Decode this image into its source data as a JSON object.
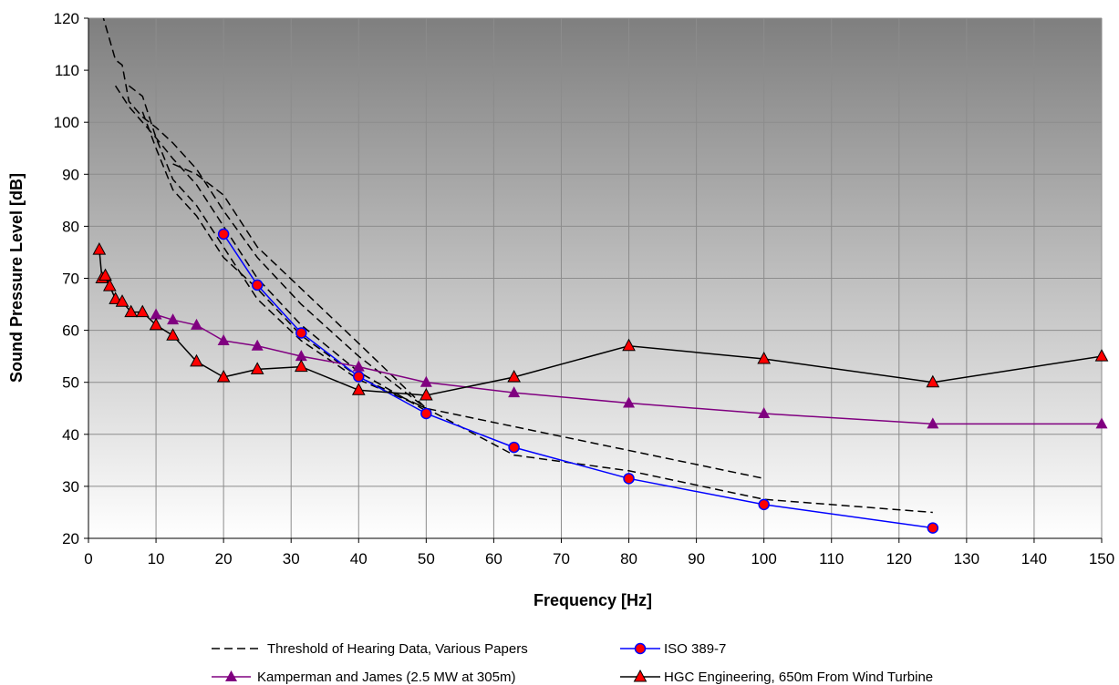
{
  "chart_data": {
    "type": "line",
    "title": "",
    "xlabel": "Frequency [Hz]",
    "ylabel": "Sound Pressure Level [dB]",
    "xlim": [
      0,
      150
    ],
    "ylim": [
      20,
      120
    ],
    "xticks": [
      0,
      10,
      20,
      30,
      40,
      50,
      60,
      70,
      80,
      90,
      100,
      110,
      120,
      130,
      140,
      150
    ],
    "yticks": [
      20,
      30,
      40,
      50,
      60,
      70,
      80,
      90,
      100,
      110,
      120
    ],
    "grid": true,
    "legend_position": "bottom",
    "series": [
      {
        "name": "Threshold of Hearing Data, Various Papers",
        "style": "dashed",
        "color": "#000000",
        "marker": "none",
        "lines": [
          [
            [
              2,
              121
            ],
            [
              4,
              112
            ],
            [
              5,
              111
            ],
            [
              6,
              104
            ],
            [
              8,
              101
            ],
            [
              10,
              99
            ],
            [
              12.5,
              96
            ],
            [
              16,
              91
            ],
            [
              20,
              83
            ],
            [
              25,
              74
            ],
            [
              31.5,
              65
            ],
            [
              40,
              55
            ],
            [
              50,
              45
            ]
          ],
          [
            [
              4,
              107
            ],
            [
              6,
              103
            ],
            [
              8,
              100
            ],
            [
              10,
              97
            ],
            [
              12.5,
              93
            ],
            [
              16,
              88
            ],
            [
              20,
              80
            ],
            [
              25,
              70
            ],
            [
              31.5,
              61
            ],
            [
              40,
              52
            ],
            [
              50,
              44.5
            ]
          ],
          [
            [
              6,
              107
            ],
            [
              8,
              105
            ],
            [
              10,
              97
            ],
            [
              12.5,
              89
            ],
            [
              16,
              84
            ],
            [
              20,
              76
            ],
            [
              25,
              66
            ],
            [
              31.5,
              58
            ],
            [
              40,
              50.5
            ],
            [
              50,
              45
            ]
          ],
          [
            [
              8,
              102
            ],
            [
              10,
              95
            ],
            [
              12.5,
              87
            ],
            [
              16,
              82
            ],
            [
              20,
              74
            ],
            [
              25,
              68
            ],
            [
              31.5,
              59
            ],
            [
              40,
              51
            ],
            [
              50,
              45
            ],
            [
              63,
              36
            ],
            [
              80,
              33
            ],
            [
              100,
              27.5
            ],
            [
              125,
              25
            ]
          ],
          [
            [
              12.5,
              92
            ],
            [
              16,
              90
            ],
            [
              20,
              86
            ],
            [
              25,
              76
            ],
            [
              31.5,
              68
            ],
            [
              40,
              57.5
            ],
            [
              50,
              45
            ],
            [
              100,
              31.5
            ]
          ]
        ]
      },
      {
        "name": "ISO 389-7",
        "style": "solid",
        "color": "#0000ff",
        "marker": "circle",
        "marker_fill": "#ff0000",
        "points": [
          [
            20,
            78.5
          ],
          [
            25,
            68.7
          ],
          [
            31.5,
            59.5
          ],
          [
            40,
            51.1
          ],
          [
            50,
            44
          ],
          [
            63,
            37.5
          ],
          [
            80,
            31.5
          ],
          [
            100,
            26.5
          ],
          [
            125,
            22
          ]
        ]
      },
      {
        "name": "Kamperman and James (2.5 MW at 305m)",
        "style": "solid",
        "color": "#800080",
        "marker": "triangle",
        "marker_fill": "#800080",
        "points": [
          [
            10,
            63
          ],
          [
            12.5,
            62
          ],
          [
            16,
            61
          ],
          [
            20,
            58
          ],
          [
            25,
            57
          ],
          [
            31.5,
            55
          ],
          [
            40,
            53
          ],
          [
            50,
            50
          ],
          [
            63,
            48
          ],
          [
            80,
            46
          ],
          [
            100,
            44
          ],
          [
            125,
            42
          ],
          [
            150,
            42
          ]
        ]
      },
      {
        "name": "HGC Engineering, 650m From Wind Turbine",
        "style": "solid",
        "color": "#000000",
        "marker": "triangle",
        "marker_fill": "#ff0000",
        "points": [
          [
            1.6,
            75.5
          ],
          [
            2,
            70
          ],
          [
            2.5,
            70.5
          ],
          [
            3.15,
            68.5
          ],
          [
            4,
            66
          ],
          [
            5,
            65.5
          ],
          [
            6.3,
            63.5
          ],
          [
            8,
            63.5
          ],
          [
            10,
            61
          ],
          [
            12.5,
            59
          ],
          [
            16,
            54
          ],
          [
            20,
            51
          ],
          [
            25,
            52.5
          ],
          [
            31.5,
            53
          ],
          [
            40,
            48.5
          ],
          [
            50,
            47.5
          ],
          [
            63,
            51
          ],
          [
            80,
            57
          ],
          [
            100,
            54.5
          ],
          [
            125,
            50
          ],
          [
            150,
            55
          ]
        ]
      }
    ]
  },
  "legend": {
    "items": [
      "Threshold of Hearing Data, Various Papers",
      "ISO 389-7",
      "Kamperman and James (2.5 MW at 305m)",
      "HGC Engineering, 650m From Wind Turbine"
    ]
  },
  "colors": {
    "plot_gradient_top": "#7f7f7f",
    "plot_gradient_bottom": "#ffffff",
    "gridline": "#8c8c8c"
  }
}
